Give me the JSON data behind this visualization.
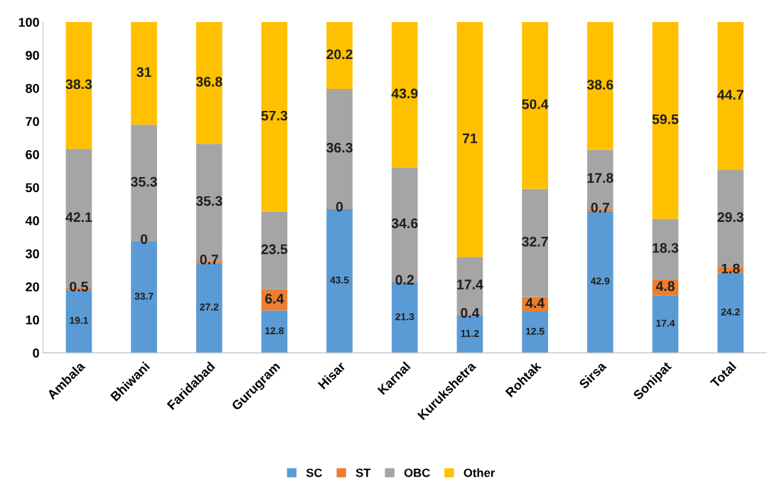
{
  "chart_data": {
    "type": "bar",
    "stacked": true,
    "categories": [
      "Ambala",
      "Bhiwani",
      "Faridabad",
      "Gurugram",
      "Hisar",
      "Karnal",
      "Kurukshetra",
      "Rohtak",
      "Sirsa",
      "Sonipat",
      "Total"
    ],
    "series": [
      {
        "name": "SC",
        "color": "#5b9bd5",
        "values": [
          19.1,
          33.7,
          27.2,
          12.8,
          43.5,
          21.3,
          11.2,
          12.5,
          42.9,
          17.4,
          24.2
        ]
      },
      {
        "name": "ST",
        "color": "#ed7d31",
        "values": [
          0.5,
          0,
          0.7,
          6.4,
          0,
          0.2,
          0.4,
          4.4,
          0.7,
          4.8,
          1.8
        ]
      },
      {
        "name": "OBC",
        "color": "#a5a5a5",
        "values": [
          42.1,
          35.3,
          35.3,
          23.5,
          36.3,
          34.6,
          17.4,
          32.7,
          17.8,
          18.3,
          29.3
        ]
      },
      {
        "name": "Other",
        "color": "#ffc000",
        "values": [
          38.3,
          31,
          36.8,
          57.3,
          20.2,
          43.9,
          71,
          50.4,
          38.6,
          59.5,
          44.7
        ]
      }
    ],
    "ylim": [
      0,
      100
    ],
    "yticks": [
      0,
      10,
      20,
      30,
      40,
      50,
      60,
      70,
      80,
      90,
      100
    ],
    "grid": false,
    "legend": "bottom",
    "data_labels": true
  }
}
